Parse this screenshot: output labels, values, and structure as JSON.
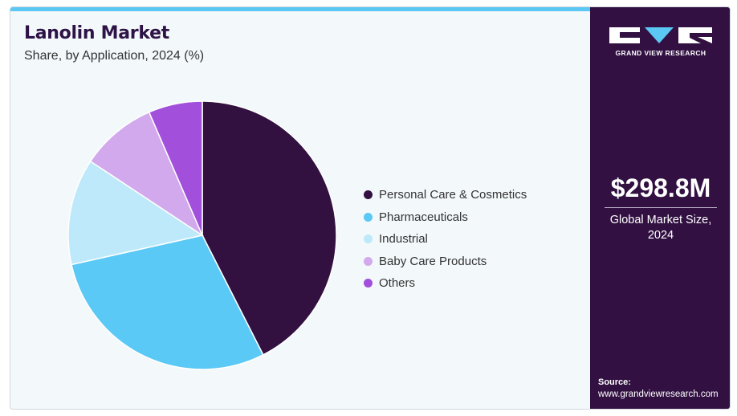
{
  "header": {
    "title": "Lanolin Market",
    "subtitle": "Share, by Application, 2024 (%)"
  },
  "chart_data": {
    "type": "pie",
    "title": "Lanolin Market",
    "subtitle": "Share, by Application, 2024 (%)",
    "categories": [
      "Personal Care & Cosmetics",
      "Pharmaceuticals",
      "Industrial",
      "Baby Care Products",
      "Others"
    ],
    "values": [
      42.5,
      29.0,
      12.8,
      9.2,
      6.5
    ],
    "colors": [
      "#32103f",
      "#5bc9f5",
      "#bde9fa",
      "#d1a9ec",
      "#a24fdc"
    ],
    "legend_position": "right"
  },
  "sidebar": {
    "brand": "GRAND VIEW RESEARCH",
    "market_size": "$298.8M",
    "market_label": "Global Market Size, 2024",
    "source_label": "Source:",
    "source_url": "www.grandviewresearch.com"
  },
  "colors": {
    "accent": "#5bc8f4",
    "panel": "#321142",
    "title": "#2e1346"
  }
}
